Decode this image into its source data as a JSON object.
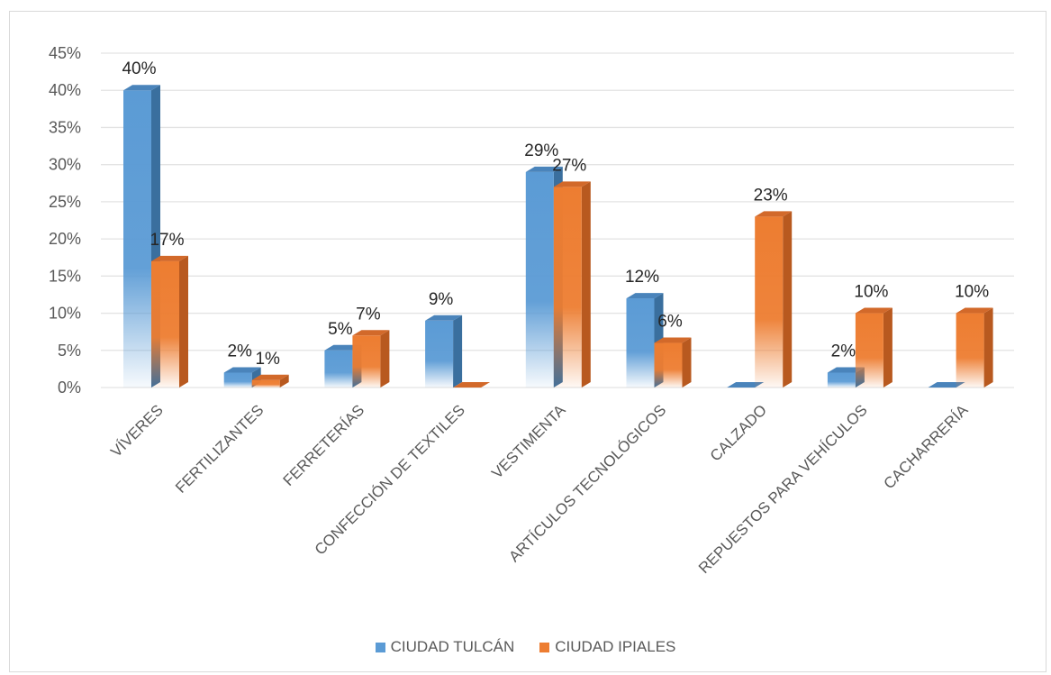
{
  "chart_data": {
    "type": "bar",
    "variant": "3d-clustered-column",
    "title": "",
    "xlabel": "",
    "ylabel": "",
    "ylim": [
      0,
      45
    ],
    "y_ticks": [
      "0%",
      "5%",
      "10%",
      "15%",
      "20%",
      "25%",
      "30%",
      "35%",
      "40%",
      "45%"
    ],
    "y_tick_values": [
      0,
      5,
      10,
      15,
      20,
      25,
      30,
      35,
      40,
      45
    ],
    "grid": true,
    "legend_position": "bottom",
    "categories": [
      "VÍVERES",
      "FERTILIZANTES",
      "FERRETERÍAS",
      "CONFECCIÓN DE TEXTILES",
      "VESTIMENTA",
      "ARTÍCULOS TECNOLÓGICOS",
      "CALZADO",
      "REPUESTOS PARA VEHÍCULOS",
      "CACHARRERÍA"
    ],
    "series": [
      {
        "name": "CIUDAD TULCÁN",
        "color": "#5b9bd5",
        "values": [
          40,
          2,
          5,
          9,
          29,
          12,
          0,
          2,
          0
        ],
        "labels": [
          "40%",
          "2%",
          "5%",
          "9%",
          "29%",
          "12%",
          "",
          "2%",
          ""
        ]
      },
      {
        "name": "CIUDAD IPIALES",
        "color": "#ed7d31",
        "values": [
          17,
          1,
          7,
          0,
          27,
          6,
          23,
          10,
          10
        ],
        "labels": [
          "17%",
          "1%",
          "7%",
          "",
          "27%",
          "6%",
          "23%",
          "10%",
          "10%"
        ]
      }
    ]
  }
}
